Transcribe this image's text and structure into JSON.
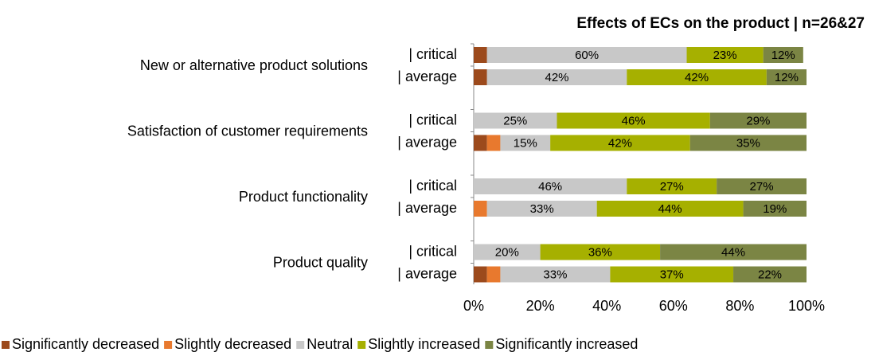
{
  "chart_data": {
    "type": "stacked-barh",
    "title": "Effects of ECs on the product | n=26&27",
    "groups": [
      "New or alternative product solutions",
      "Satisfaction of customer requirements",
      "Product functionality",
      "Product quality"
    ],
    "categories": [
      "| critical",
      "| average",
      "| critical",
      "| average",
      "| critical",
      "| average",
      "| critical",
      "| average"
    ],
    "series": [
      {
        "name": "Significantly decreased",
        "color": "#9c4a1c",
        "values": [
          4,
          4,
          0,
          4,
          0,
          0,
          0,
          4
        ],
        "value_labels": [
          null,
          null,
          null,
          null,
          null,
          null,
          null,
          null
        ]
      },
      {
        "name": "Slightly decreased",
        "color": "#e8792e",
        "values": [
          0,
          0,
          0,
          4,
          0,
          4,
          0,
          4
        ],
        "value_labels": [
          null,
          null,
          null,
          null,
          null,
          null,
          null,
          null
        ]
      },
      {
        "name": "Neutral",
        "color": "#c8c8c8",
        "values": [
          60,
          42,
          25,
          15,
          46,
          33,
          20,
          33
        ],
        "value_labels": [
          "60%",
          "42%",
          "25%",
          "15%",
          "46%",
          "33%",
          "20%",
          "33%"
        ]
      },
      {
        "name": "Slightly increased",
        "color": "#a6b000",
        "values": [
          23,
          42,
          46,
          42,
          27,
          44,
          36,
          37
        ],
        "value_labels": [
          "23%",
          "42%",
          "46%",
          "42%",
          "27%",
          "44%",
          "36%",
          "37%"
        ]
      },
      {
        "name": "Significantly increased",
        "color": "#7b8544",
        "values": [
          12,
          12,
          29,
          35,
          27,
          19,
          44,
          22
        ],
        "value_labels": [
          "12%",
          "12%",
          "29%",
          "35%",
          "27%",
          "19%",
          "44%",
          "22%"
        ]
      }
    ],
    "xlim": [
      0,
      100
    ],
    "xticks": [
      {
        "value": 0,
        "label": "0%"
      },
      {
        "value": 20,
        "label": "20%"
      },
      {
        "value": 40,
        "label": "40%"
      },
      {
        "value": 60,
        "label": "60%"
      },
      {
        "value": 80,
        "label": "80%"
      },
      {
        "value": 100,
        "label": "100%"
      }
    ]
  }
}
